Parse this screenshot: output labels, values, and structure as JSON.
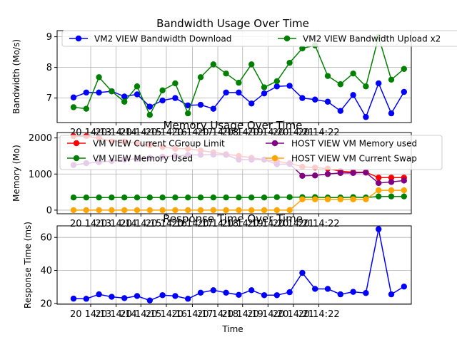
{
  "chart_data": [
    {
      "type": "line",
      "title": "Bandwidth Usage Over Time",
      "xlabel": "",
      "ylabel": "Bandwidth (Mo/s)",
      "xticks": [
        "20 14:13",
        "20 14:14",
        "20 14:15",
        "20 14:16",
        "20 14:17",
        "20 14:18",
        "20 14:19",
        "20 14:20",
        "20 14:21",
        "20 14:22"
      ],
      "ylim": [
        6.2,
        9.2
      ],
      "yticks": [
        7,
        8,
        9
      ],
      "grid": true,
      "legend": "top-center, 2 columns",
      "series": [
        {
          "name": "VM2 VIEW Bandwidth Download",
          "color": "#0000ff",
          "values": [
            7.02,
            7.18,
            7.18,
            7.22,
            7.05,
            7.12,
            6.72,
            6.92,
            7.0,
            6.76,
            6.78,
            6.65,
            7.18,
            7.18,
            6.82,
            7.15,
            7.38,
            7.4,
            7.0,
            6.95,
            6.88,
            6.58,
            7.1,
            6.38,
            7.48,
            6.5,
            7.2
          ]
        },
        {
          "name": "VM2 VIEW Bandwidth Upload x2",
          "color": "#008000",
          "values": [
            6.7,
            6.65,
            7.68,
            7.22,
            6.88,
            7.38,
            6.45,
            7.25,
            7.48,
            6.5,
            7.68,
            8.1,
            7.8,
            7.5,
            8.1,
            7.35,
            7.55,
            8.15,
            8.62,
            8.72,
            7.72,
            7.45,
            7.8,
            7.38,
            9.0,
            7.6,
            7.95
          ]
        }
      ]
    },
    {
      "type": "line",
      "title": "Memory Usage Over Time",
      "xlabel": "",
      "ylabel": "Memory (Mo)",
      "xticks": [
        "20 14:13",
        "20 14:14",
        "20 14:15",
        "20 14:16",
        "20 14:17",
        "20 14:18",
        "20 14:19",
        "20 14:20",
        "20 14:21",
        "20 14:22"
      ],
      "ylim": [
        -100,
        2150
      ],
      "yticks": [
        0,
        1000,
        2000
      ],
      "grid": true,
      "legend": "top-center, 2 columns",
      "series": [
        {
          "name": "VM VIEW Current CGroup Limit",
          "color": "#ff0000",
          "values": [
            2050,
            2050,
            2000,
            1900,
            1900,
            1850,
            1800,
            1750,
            1700,
            1700,
            1650,
            1600,
            1550,
            1500,
            1450,
            1400,
            1350,
            1300,
            1200,
            1180,
            1150,
            1080,
            1050,
            1050,
            900,
            900,
            900
          ]
        },
        {
          "name": "VM VIEW Memory Used",
          "color": "#008000",
          "values": [
            350,
            350,
            350,
            350,
            350,
            350,
            350,
            350,
            350,
            350,
            350,
            350,
            350,
            350,
            350,
            350,
            360,
            360,
            360,
            360,
            350,
            350,
            360,
            350,
            380,
            380,
            380
          ]
        },
        {
          "name": "HOST VIEW VM Memory used",
          "color": "#800080",
          "values": [
            1250,
            1300,
            1330,
            1360,
            1400,
            1420,
            1450,
            1480,
            1500,
            1530,
            1530,
            1540,
            1530,
            1400,
            1400,
            1400,
            1270,
            1280,
            950,
            960,
            1000,
            1030,
            1030,
            1040,
            750,
            780,
            820
          ]
        },
        {
          "name": "HOST VIEW VM Current Swap",
          "color": "#ffa500",
          "values": [
            0,
            0,
            0,
            0,
            0,
            0,
            0,
            0,
            0,
            0,
            0,
            0,
            0,
            0,
            0,
            0,
            0,
            0,
            300,
            300,
            300,
            300,
            300,
            300,
            550,
            550,
            550
          ]
        }
      ]
    },
    {
      "type": "line",
      "title": "Response Time Over Time",
      "xlabel": "Time",
      "ylabel": "Response Time (ms)",
      "xticks": [
        "20 14:13",
        "20 14:14",
        "20 14:15",
        "20 14:16",
        "20 14:17",
        "20 14:18",
        "20 14:19",
        "20 14:20",
        "20 14:21",
        "20 14:22"
      ],
      "ylim": [
        19.5,
        67
      ],
      "yticks": [
        20,
        40,
        60
      ],
      "grid": true,
      "legend": "none",
      "series": [
        {
          "name": "",
          "color": "#0000ff",
          "values": [
            22.9,
            22.8,
            25.5,
            24.0,
            23.2,
            24.5,
            21.8,
            25.0,
            24.5,
            22.8,
            26.5,
            28.0,
            26.5,
            25.2,
            28.0,
            25.0,
            25.0,
            26.8,
            38.5,
            28.8,
            28.8,
            25.5,
            27.0,
            26.3,
            65.0,
            25.5,
            30.2
          ]
        }
      ]
    }
  ]
}
